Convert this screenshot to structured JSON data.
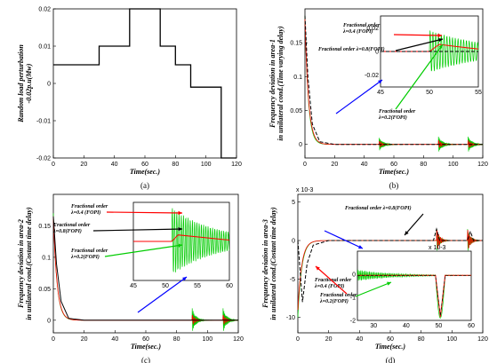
{
  "chart_data": [
    {
      "id": "a",
      "type": "line",
      "caption": "(a)",
      "xlabel": "Time(sec.)",
      "ylabel": "Random load perturbation",
      "ylabel2": "-0.02p.u(Mw)",
      "xlim": [
        0,
        120
      ],
      "ylim": [
        -0.02,
        0.02
      ],
      "xticks": [
        0,
        20,
        40,
        60,
        80,
        100,
        120
      ],
      "yticks": [
        -0.02,
        -0.01,
        0,
        0.01,
        0.02
      ],
      "ytick_labels": [
        "-0.02",
        "-0.01",
        "0",
        "0.01",
        "0.02"
      ],
      "series": [
        {
          "color": "#000000",
          "step": true,
          "x": [
            0,
            30,
            30,
            50,
            50,
            70,
            70,
            80,
            80,
            90,
            90,
            110,
            110,
            120
          ],
          "y": [
            0.005,
            0.005,
            0.01,
            0.01,
            0.02,
            0.02,
            0.01,
            0.01,
            0.005,
            0.005,
            -0.001,
            -0.001,
            -0.02,
            -0.02
          ]
        }
      ]
    },
    {
      "id": "b",
      "type": "line",
      "caption": "(b)",
      "xlabel": "Time(sec.)",
      "ylabel": "Frequency deviation in area-1",
      "ylabel2": "in unilateral cond.(Time varying delay)",
      "xlim": [
        0,
        120
      ],
      "ylim": [
        -0.02,
        0.2
      ],
      "xticks": [
        0,
        20,
        40,
        60,
        80,
        100,
        120
      ],
      "yticks": [
        0,
        0.05,
        0.1,
        0.15
      ],
      "ytick_labels": [
        "0",
        "0.05",
        "0.1",
        "0.15"
      ],
      "inset": {
        "xlim": [
          45,
          55
        ],
        "ylim": [
          -0.03,
          0.03
        ],
        "xticks": [
          45,
          50,
          55
        ],
        "yticks": [
          -0.02,
          0,
          0.02
        ],
        "ytick_labels": [
          "-0.02",
          "0",
          "0.02"
        ]
      },
      "annotations": [
        {
          "lines": [
            "Fractional order",
            "λ=0.4 (FOPI)"
          ],
          "color": "#ff0000"
        },
        {
          "lines": [
            "Fractional order λ=0.8(FOPI)"
          ],
          "color": "#000000"
        },
        {
          "lines": [
            "Fractional order",
            "λ=0.2(FOPI)"
          ],
          "color": "#00cc00"
        }
      ]
    },
    {
      "id": "c",
      "type": "line",
      "caption": "(c)",
      "xlabel": "Time(sec.)",
      "ylabel": "Frequency deviation in area-2",
      "ylabel2": "in unilateral cond.(Costant time delay)",
      "xlim": [
        0,
        120
      ],
      "ylim": [
        -0.02,
        0.2
      ],
      "xticks": [
        0,
        20,
        40,
        60,
        80,
        100,
        120
      ],
      "yticks": [
        0,
        0.05,
        0.1,
        0.15
      ],
      "ytick_labels": [
        "0",
        "0.05",
        "0.1",
        "0.15"
      ],
      "inset": {
        "xlim": [
          45,
          60
        ],
        "xticks": [
          45,
          50,
          55,
          60
        ]
      },
      "annotations": [
        {
          "lines": [
            "Fractional order",
            "λ=0.4 (FOPI)"
          ],
          "color": "#ff0000"
        },
        {
          "lines": [
            "Fractional order",
            "λ=0.8(FOPI)"
          ],
          "color": "#000000"
        },
        {
          "lines": [
            "Fractional order",
            "λ=0.2(FOPI)"
          ],
          "color": "#00cc00"
        }
      ]
    },
    {
      "id": "d",
      "type": "line",
      "caption": "(d)",
      "xlabel": "Time(sec.)",
      "ylabel": "Frequency deviation in area-3",
      "ylabel2": "in unilateral cond.(Costant time delay)",
      "multiplier": "x 10-3",
      "xlim": [
        0,
        120
      ],
      "ylim": [
        -12,
        6
      ],
      "xticks": [
        0,
        20,
        40,
        60,
        80,
        100,
        120
      ],
      "yticks": [
        -10,
        -5,
        0,
        5
      ],
      "ytick_labels": [
        "-10",
        "-5",
        "0",
        "5"
      ],
      "inset": {
        "multiplier": "x 10-3",
        "xlim": [
          25,
          60
        ],
        "ylim": [
          -2,
          1
        ],
        "xticks": [
          30,
          40,
          50,
          60
        ],
        "yticks": [
          -2,
          -1,
          0
        ],
        "ytick_labels": [
          "-2",
          "-1",
          "0"
        ]
      },
      "annotations": [
        {
          "lines": [
            "Fractional order λ=0.8(FOPI)"
          ],
          "color": "#000000"
        },
        {
          "lines": [
            "Fractional order",
            "λ=0.4 (FOPI)"
          ],
          "color": "#ff0000"
        },
        {
          "lines": [
            "Fractional order",
            "λ=0.2(FOPI)"
          ],
          "color": "#00cc00"
        }
      ]
    }
  ],
  "colors": {
    "red": "#ff0000",
    "black": "#000000",
    "green": "#00cc00",
    "blue": "#0000ff"
  }
}
